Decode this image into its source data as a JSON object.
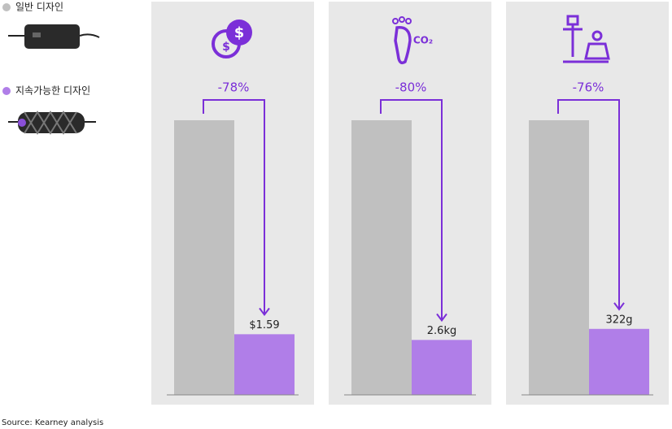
{
  "chart_data": [
    {
      "type": "bar",
      "annotation": "-78%",
      "ylim": [
        0,
        7.2
      ],
      "series": [
        {
          "name": "일반 디자인",
          "color": "#c0c0c0",
          "values": [
            7.2
          ]
        },
        {
          "name": "지속가능한 디자인",
          "color": "#b07ee8",
          "values": [
            1.59
          ],
          "value_labels": [
            "$1.59"
          ]
        }
      ]
    },
    {
      "type": "bar",
      "annotation": "-80%",
      "ylim": [
        0,
        13
      ],
      "series": [
        {
          "name": "일반 디자인",
          "color": "#c0c0c0",
          "values": [
            13
          ]
        },
        {
          "name": "지속가능한 디자인",
          "color": "#b07ee8",
          "values": [
            2.6
          ],
          "value_labels": [
            "2.6kg"
          ]
        }
      ]
    },
    {
      "type": "bar",
      "annotation": "-76%",
      "ylim": [
        0,
        1340
      ],
      "series": [
        {
          "name": "일반 디자인",
          "color": "#c0c0c0",
          "values": [
            1340
          ]
        },
        {
          "name": "지속가능한 디자인",
          "color": "#b07ee8",
          "values": [
            322
          ],
          "value_labels": [
            "322g"
          ]
        }
      ]
    }
  ],
  "source": "Source: Kearney analysis"
}
